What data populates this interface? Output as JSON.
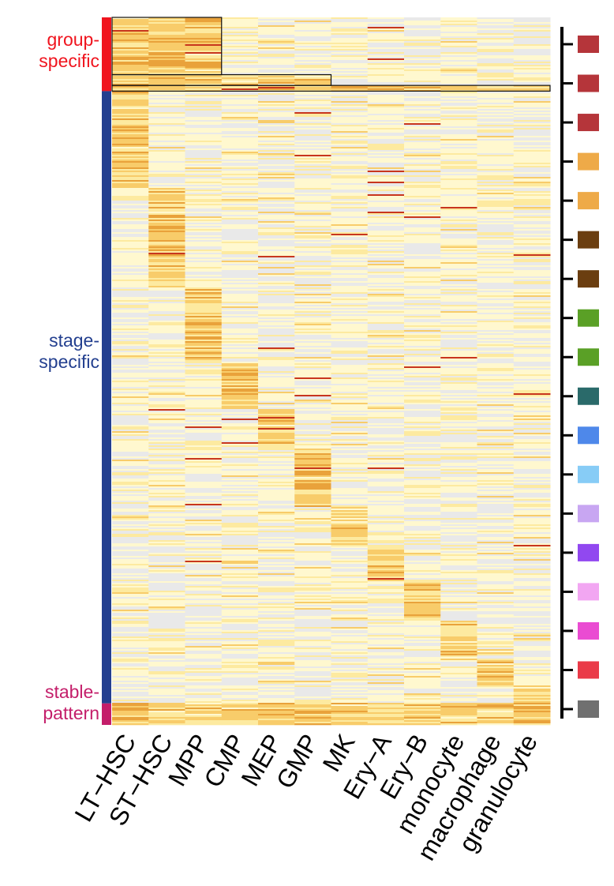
{
  "chart_data": {
    "type": "heatmap",
    "title": "",
    "xlabel": "",
    "ylabel": "",
    "categories": [
      "LT−HSC",
      "ST−HSC",
      "MPP",
      "CMP",
      "MEP",
      "GMP",
      "MK",
      "Ery−A",
      "Ery−B",
      "monocyte",
      "macrophage",
      "granulocyte"
    ],
    "row_groups": [
      {
        "key": "group",
        "lines": [
          "group-",
          "specific"
        ],
        "color": "#f0141e"
      },
      {
        "key": "stage",
        "lines": [
          "stage-",
          "specific"
        ],
        "color": "#233f8f"
      },
      {
        "key": "stable",
        "lines": [
          "stable-",
          "pattern"
        ],
        "color": "#c41e6a"
      }
    ],
    "group_specific_blocks": [
      {
        "cells": [
          "LT−HSC",
          "ST−HSC",
          "MPP"
        ],
        "row_share": 0.08
      },
      {
        "cells": [
          "LT−HSC",
          "ST−HSC",
          "MPP",
          "CMP",
          "MEP",
          "GMP"
        ],
        "row_share": 0.015
      },
      {
        "cells": [
          "LT−HSC",
          "ST−HSC",
          "MPP",
          "CMP",
          "MEP",
          "GMP",
          "MK",
          "Ery−A",
          "Ery−B",
          "monocyte",
          "macrophage",
          "granulocyte"
        ],
        "row_share": 0.008
      }
    ],
    "stage_specific_blocks": [
      {
        "cell": "LT−HSC",
        "row_share": 0.135
      },
      {
        "cell": "ST−HSC",
        "row_share": 0.14
      },
      {
        "cell": "MPP",
        "row_share": 0.105
      },
      {
        "cell": "CMP",
        "row_share": 0.065
      },
      {
        "cell": "MEP",
        "row_share": 0.055
      },
      {
        "cell": "GMP",
        "row_share": 0.08
      },
      {
        "cell": "MK",
        "row_share": 0.055
      },
      {
        "cell": "Ery−A",
        "row_share": 0.05
      },
      {
        "cell": "Ery−B",
        "row_share": 0.055
      },
      {
        "cell": "monocyte",
        "row_share": 0.055
      },
      {
        "cell": "macrophage",
        "row_share": 0.035
      },
      {
        "cell": "granulocyte",
        "row_share": 0.025
      }
    ],
    "stable_pattern_row_share": 0.03,
    "colorscale": [
      "#e9e9e9",
      "#fff8cf",
      "#fdeaa0",
      "#f8cc6a",
      "#e9a23b",
      "#c8361e"
    ],
    "cluster_colors": [
      "#b5353a",
      "#b5353a",
      "#b5353a",
      "#eeaa48",
      "#eeaa48",
      "#6b3e10",
      "#6b3e10",
      "#5aa026",
      "#5aa026",
      "#2a6a6a",
      "#4e88ea",
      "#87ccf6",
      "#c8a6f2",
      "#9148f0",
      "#f2a6f2",
      "#ea4cd2",
      "#ea3a48",
      "#707070"
    ]
  }
}
